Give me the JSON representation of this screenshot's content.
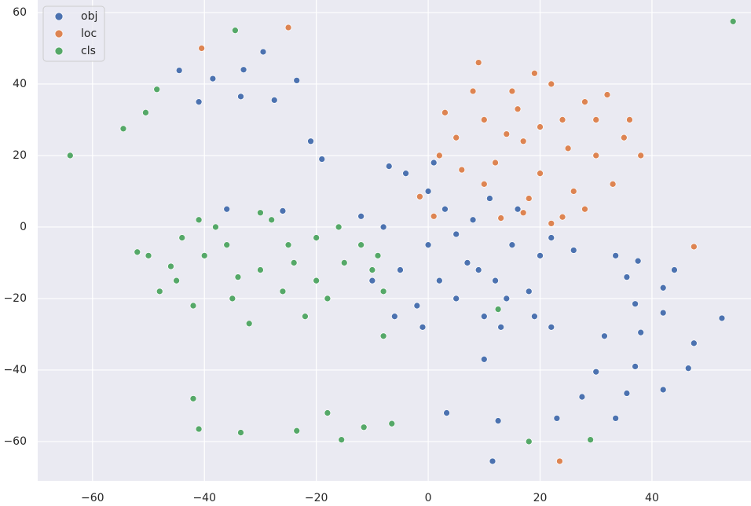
{
  "chart_data": {
    "type": "scatter",
    "xlim": [
      -69.8,
      57.7
    ],
    "ylim": [
      -71,
      63.5
    ],
    "xticks": [
      {
        "value": -60,
        "label": "−60"
      },
      {
        "value": -40,
        "label": "−40"
      },
      {
        "value": -20,
        "label": "−20"
      },
      0,
      20,
      40
    ],
    "yticks": [
      {
        "value": -60,
        "label": "−60"
      },
      {
        "value": -40,
        "label": "−40"
      },
      {
        "value": -20,
        "label": "−20"
      },
      0,
      20,
      40,
      60
    ],
    "grid": true,
    "legend": "upper-left",
    "series": [
      {
        "name": "obj",
        "color": "#4c72b0",
        "x": [
          -44.5,
          -41,
          -38.5,
          -33,
          -33.5,
          -29.5,
          -27.5,
          -23.5,
          -21,
          -19,
          -36,
          -26,
          3.3,
          12.5,
          11.5,
          10,
          22,
          23,
          26,
          27.5,
          30,
          31.5,
          33.5,
          33.5,
          35.5,
          35.5,
          37,
          37,
          37.5,
          38,
          42,
          42,
          42,
          44,
          46.5,
          47.5,
          52.5,
          7,
          0,
          12,
          -5,
          15,
          5,
          -2,
          10,
          18,
          3,
          -8,
          8,
          20,
          -10,
          0,
          13,
          -4,
          16,
          22,
          -6,
          5,
          9,
          2,
          14,
          -1,
          19,
          -12,
          11,
          -7,
          1
        ],
        "values": [
          43.8,
          35,
          41.5,
          44,
          36.5,
          49,
          35.5,
          41,
          24,
          19,
          5,
          4.5,
          -52,
          -54.2,
          -65.5,
          -37,
          -28,
          -53.5,
          -6.5,
          -47.5,
          -40.5,
          -30.5,
          -8,
          -53.5,
          -14,
          -46.5,
          -21.5,
          -39,
          -9.5,
          -29.5,
          -17,
          -24,
          -45.5,
          -12,
          -39.5,
          -32.5,
          -25.5,
          -10,
          -5,
          -15,
          -12,
          -5,
          -20,
          -22,
          -25,
          -18,
          5,
          0,
          2,
          -8,
          -15,
          10,
          -28,
          15,
          5,
          -3,
          -25,
          -2,
          -12,
          -15,
          -20,
          -28,
          -25,
          3,
          8,
          17,
          18
        ]
      },
      {
        "name": "loc",
        "color": "#dd8452",
        "x": [
          -40.5,
          -25,
          47.5,
          23.5,
          -1.5,
          1,
          17,
          13,
          22,
          24,
          17,
          10,
          24,
          5,
          30,
          20,
          12,
          28,
          3,
          35,
          15,
          22,
          8,
          33,
          26,
          18,
          2,
          38,
          10,
          30,
          14,
          20,
          25,
          6,
          36,
          19,
          9,
          28,
          16,
          32
        ],
        "values": [
          50,
          55.8,
          -5.5,
          -65.5,
          8.5,
          3,
          4,
          2.5,
          1,
          2.8,
          24,
          30,
          30,
          25,
          20,
          15,
          18,
          35,
          32,
          25,
          38,
          40,
          38,
          12,
          10,
          8,
          20,
          20,
          12,
          30,
          26,
          28,
          22,
          16,
          30,
          43,
          46,
          5,
          33,
          37
        ]
      },
      {
        "name": "cls",
        "color": "#55a868",
        "x": [
          -64,
          -54.5,
          -50.5,
          -48.5,
          -34.5,
          54.5,
          -42,
          -41,
          -33.5,
          -23.5,
          -18,
          -15.5,
          -11.5,
          -6.5,
          18,
          29,
          12.5,
          -8,
          -30,
          -40,
          -20,
          -45,
          -35,
          -25,
          -15,
          -50,
          -38,
          -28,
          -10,
          -22,
          -32,
          -42,
          -48,
          -52,
          -18,
          -12,
          -8,
          -36,
          -26,
          -44,
          -30,
          -41,
          -16,
          -24,
          -34,
          -46,
          -20,
          -9
        ],
        "values": [
          20,
          27.5,
          32,
          38.5,
          55,
          57.5,
          -48,
          -56.5,
          -57.5,
          -57,
          -52,
          -59.5,
          -56,
          -55,
          -60,
          -59.5,
          -23,
          -30.5,
          -12,
          -8,
          -15,
          -15,
          -20,
          -5,
          -10,
          -8,
          0,
          2,
          -12,
          -25,
          -27,
          -22,
          -18,
          -7,
          -20,
          -5,
          -18,
          -5,
          -18,
          -3,
          4,
          2,
          0,
          -10,
          -14,
          -11,
          -3,
          -8
        ]
      }
    ]
  }
}
